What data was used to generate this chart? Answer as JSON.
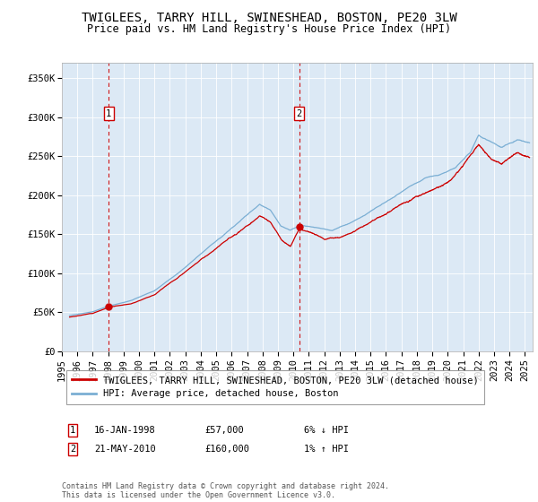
{
  "title": "TWIGLEES, TARRY HILL, SWINESHEAD, BOSTON, PE20 3LW",
  "subtitle": "Price paid vs. HM Land Registry's House Price Index (HPI)",
  "ylabel_ticks": [
    "£0",
    "£50K",
    "£100K",
    "£150K",
    "£200K",
    "£250K",
    "£300K",
    "£350K"
  ],
  "ytick_values": [
    0,
    50000,
    100000,
    150000,
    200000,
    250000,
    300000,
    350000
  ],
  "ylim": [
    0,
    370000
  ],
  "xlim_start": 1995.0,
  "xlim_end": 2025.5,
  "xtick_years": [
    1995,
    1996,
    1997,
    1998,
    1999,
    2000,
    2001,
    2002,
    2003,
    2004,
    2005,
    2006,
    2007,
    2008,
    2009,
    2010,
    2011,
    2012,
    2013,
    2014,
    2015,
    2016,
    2017,
    2018,
    2019,
    2020,
    2021,
    2022,
    2023,
    2024,
    2025
  ],
  "sale1_x": 1998.04,
  "sale1_y": 57000,
  "sale1_label": "1",
  "sale1_date": "16-JAN-1998",
  "sale1_price": "£57,000",
  "sale1_hpi": "6% ↓ HPI",
  "sale2_x": 2010.38,
  "sale2_y": 160000,
  "sale2_label": "2",
  "sale2_date": "21-MAY-2010",
  "sale2_price": "£160,000",
  "sale2_hpi": "1% ↑ HPI",
  "line_color_red": "#cc0000",
  "line_color_blue": "#7bafd4",
  "vline_color": "#cc0000",
  "background_color": "#ffffff",
  "plot_bg_color": "#dce9f5",
  "grid_color": "#ffffff",
  "legend_label_red": "TWIGLEES, TARRY HILL, SWINESHEAD, BOSTON, PE20 3LW (detached house)",
  "legend_label_blue": "HPI: Average price, detached house, Boston",
  "footnote": "Contains HM Land Registry data © Crown copyright and database right 2024.\nThis data is licensed under the Open Government Licence v3.0.",
  "title_fontsize": 10,
  "subtitle_fontsize": 8.5,
  "tick_fontsize": 7.5,
  "legend_fontsize": 7.5
}
